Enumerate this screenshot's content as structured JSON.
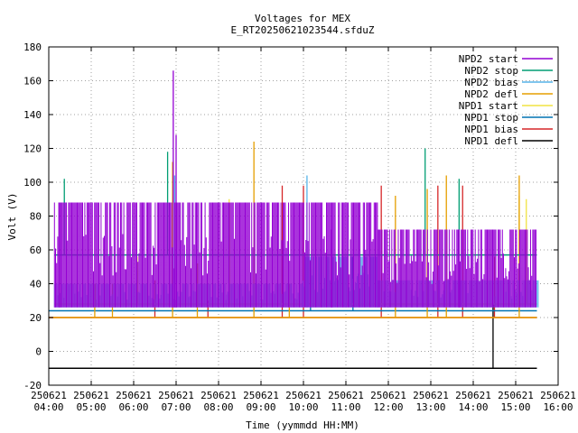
{
  "chart_data": {
    "type": "line",
    "title": "Voltages for MEX",
    "subtitle": "E_RT20250621023544.sfduZ",
    "xlabel": "Time (yymmdd HH:MM)",
    "ylabel": "Volt (V)",
    "xlim": [
      "2025-06-21 04:00",
      "2025-06-21 16:00"
    ],
    "ylim": [
      -20,
      180
    ],
    "yticks": [
      -20,
      0,
      20,
      40,
      60,
      80,
      100,
      120,
      140,
      160,
      180
    ],
    "xticks": [
      {
        "date": "250621",
        "time": "04:00"
      },
      {
        "date": "250621",
        "time": "05:00"
      },
      {
        "date": "250621",
        "time": "06:00"
      },
      {
        "date": "250621",
        "time": "07:00"
      },
      {
        "date": "250621",
        "time": "08:00"
      },
      {
        "date": "250621",
        "time": "09:00"
      },
      {
        "date": "250621",
        "time": "10:00"
      },
      {
        "date": "250621",
        "time": "11:00"
      },
      {
        "date": "250621",
        "time": "12:00"
      },
      {
        "date": "250621",
        "time": "13:00"
      },
      {
        "date": "250621",
        "time": "14:00"
      },
      {
        "date": "250621",
        "time": "15:00"
      },
      {
        "date": "250621",
        "time": "16:00"
      }
    ],
    "grid": true,
    "legend_position": "top-right",
    "series": [
      {
        "name": "NPD2 start",
        "color": "#9400d3",
        "bands": [
          {
            "from": "04:08",
            "to": "11:45",
            "low": 26,
            "high": 88
          },
          {
            "from": "11:45",
            "to": "15:30",
            "low": 26,
            "high": 72
          }
        ],
        "spikes": [
          {
            "t": "04:15",
            "high": 88
          },
          {
            "t": "06:56",
            "high": 166
          },
          {
            "t": "07:00",
            "high": 128
          },
          {
            "t": "10:40",
            "high": 72
          },
          {
            "t": "13:40",
            "high": 72
          }
        ]
      },
      {
        "name": "NPD2 stop",
        "color": "#009e73",
        "baseline": 57,
        "span": [
          "04:08",
          "15:30"
        ],
        "spikes": [
          {
            "t": "04:22",
            "high": 102
          },
          {
            "t": "06:48",
            "high": 118
          },
          {
            "t": "12:52",
            "high": 120
          },
          {
            "t": "13:40",
            "high": 102
          }
        ]
      },
      {
        "name": "NPD2 bias",
        "color": "#56b4e9",
        "bands": [
          {
            "from": "04:08",
            "to": "10:00",
            "low": 26,
            "high": 40
          },
          {
            "from": "10:00",
            "to": "11:45",
            "low": 26,
            "high": 56
          },
          {
            "from": "11:45",
            "to": "15:32",
            "low": 26,
            "high": 42
          }
        ],
        "spikes": [
          {
            "t": "06:58",
            "high": 104
          },
          {
            "t": "10:05",
            "high": 104
          }
        ]
      },
      {
        "name": "NPD2 defl",
        "color": "#e69f00",
        "baseline": 20,
        "span": [
          "04:00",
          "15:30"
        ],
        "spikes": [
          {
            "t": "05:05",
            "high": 40
          },
          {
            "t": "05:30",
            "high": 40
          },
          {
            "t": "06:55",
            "high": 112
          },
          {
            "t": "07:30",
            "high": 52
          },
          {
            "t": "08:50",
            "high": 124
          },
          {
            "t": "09:40",
            "high": 40
          },
          {
            "t": "12:10",
            "high": 92
          },
          {
            "t": "12:55",
            "high": 96
          },
          {
            "t": "13:22",
            "high": 104
          },
          {
            "t": "15:05",
            "high": 104
          }
        ]
      },
      {
        "name": "NPD1 start",
        "color": "#f0e442",
        "baseline": 28,
        "span": [
          "04:08",
          "15:30"
        ],
        "spikes": [
          {
            "t": "06:05",
            "high": 56
          },
          {
            "t": "08:15",
            "high": 90
          },
          {
            "t": "15:05",
            "high": 92
          },
          {
            "t": "15:15",
            "high": 90
          }
        ]
      },
      {
        "name": "NPD1 stop",
        "color": "#0072b2",
        "baseline": 24,
        "span": [
          "04:00",
          "15:30"
        ],
        "spikes": [
          {
            "t": "10:10",
            "high": 42
          },
          {
            "t": "11:10",
            "high": 56
          }
        ]
      },
      {
        "name": "NPD1 bias",
        "color": "#d62728",
        "baseline": 20,
        "span": [
          "04:00",
          "15:30"
        ],
        "spikes": [
          {
            "t": "06:30",
            "high": 42
          },
          {
            "t": "07:45",
            "high": 30
          },
          {
            "t": "09:30",
            "high": 98
          },
          {
            "t": "10:00",
            "high": 98
          },
          {
            "t": "11:50",
            "high": 98
          },
          {
            "t": "13:10",
            "high": 98
          },
          {
            "t": "13:45",
            "high": 98
          },
          {
            "t": "14:30",
            "high": 56
          }
        ]
      },
      {
        "name": "NPD1 defl",
        "color": "#000000",
        "baseline": -10,
        "span": [
          "04:00",
          "15:30"
        ],
        "spikes": [
          {
            "t": "14:28",
            "low": -10,
            "high": 28
          }
        ]
      }
    ]
  }
}
